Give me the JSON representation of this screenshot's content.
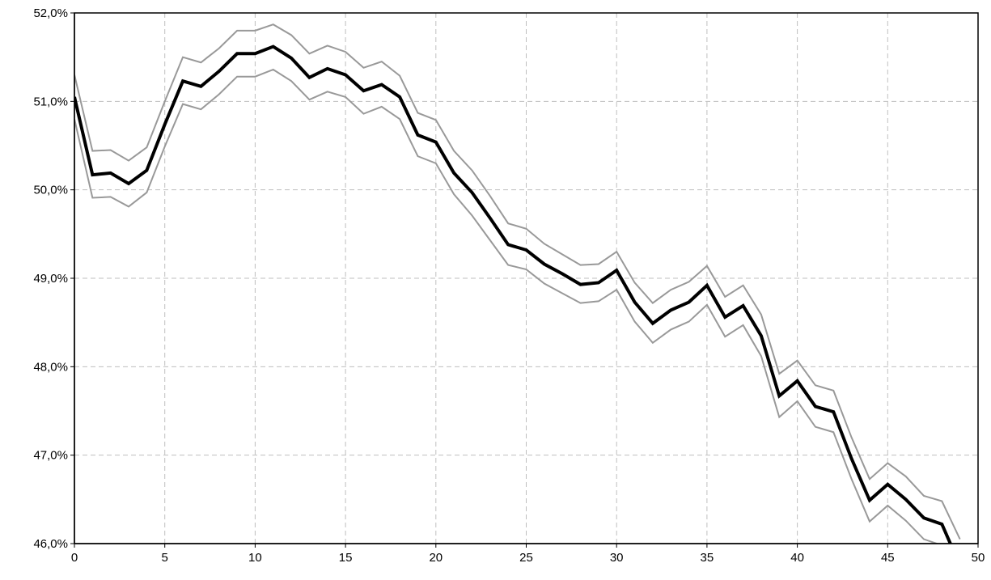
{
  "chart_data": {
    "type": "line",
    "title": "",
    "xlabel": "",
    "ylabel": "",
    "xlim": [
      0,
      50
    ],
    "ylim": [
      46.0,
      52.0
    ],
    "x_ticks": [
      0,
      5,
      10,
      15,
      20,
      25,
      30,
      35,
      40,
      45,
      50
    ],
    "x_tick_labels": [
      "0",
      "5",
      "10",
      "15",
      "20",
      "25",
      "30",
      "35",
      "40",
      "45",
      "50"
    ],
    "y_ticks": [
      46,
      47,
      48,
      49,
      50,
      51,
      52
    ],
    "y_tick_labels": [
      "46,0%",
      "47,0%",
      "48,0%",
      "49,0%",
      "50,0%",
      "51,0%",
      "52,0%"
    ],
    "grid": true,
    "legend": "none",
    "x": [
      0,
      1,
      2,
      3,
      4,
      5,
      6,
      7,
      8,
      9,
      10,
      11,
      12,
      13,
      14,
      15,
      16,
      17,
      18,
      19,
      20,
      21,
      22,
      23,
      24,
      25,
      26,
      27,
      28,
      29,
      30,
      31,
      32,
      33,
      34,
      35,
      36,
      37,
      38,
      39,
      40,
      41,
      42,
      43,
      44,
      45,
      46,
      47,
      48,
      49
    ],
    "series": [
      {
        "role": "upper",
        "color": "#999999",
        "values": [
          51.3,
          50.44,
          50.45,
          50.33,
          50.48,
          51.0,
          51.5,
          51.44,
          51.6,
          51.8,
          51.8,
          51.87,
          51.75,
          51.54,
          51.63,
          51.56,
          51.38,
          51.45,
          51.29,
          50.87,
          50.79,
          50.44,
          50.22,
          49.93,
          49.62,
          49.56,
          49.39,
          49.27,
          49.15,
          49.16,
          49.3,
          48.95,
          48.72,
          48.87,
          48.96,
          49.14,
          48.79,
          48.92,
          48.59,
          47.92,
          48.07,
          47.79,
          47.73,
          47.2,
          46.73,
          46.91,
          46.76,
          46.54,
          46.48,
          46.05
        ]
      },
      {
        "role": "main",
        "color": "#000000",
        "values": [
          51.05,
          50.17,
          50.19,
          50.07,
          50.22,
          50.74,
          51.23,
          51.17,
          51.34,
          51.54,
          51.54,
          51.62,
          51.49,
          51.27,
          51.37,
          51.3,
          51.12,
          51.19,
          51.05,
          50.62,
          50.54,
          50.19,
          49.97,
          49.68,
          49.38,
          49.32,
          49.16,
          49.05,
          48.93,
          48.95,
          49.09,
          48.73,
          48.49,
          48.64,
          48.73,
          48.92,
          48.56,
          48.69,
          48.35,
          47.67,
          47.84,
          47.55,
          47.49,
          46.96,
          46.49,
          46.67,
          46.5,
          46.29,
          46.22,
          45.75
        ]
      },
      {
        "role": "lower",
        "color": "#999999",
        "values": [
          50.8,
          49.91,
          49.92,
          49.81,
          49.97,
          50.49,
          50.97,
          50.91,
          51.08,
          51.28,
          51.28,
          51.36,
          51.23,
          51.02,
          51.11,
          51.05,
          50.86,
          50.94,
          50.8,
          50.38,
          50.3,
          49.95,
          49.71,
          49.43,
          49.15,
          49.1,
          48.94,
          48.83,
          48.72,
          48.74,
          48.87,
          48.51,
          48.27,
          48.42,
          48.51,
          48.7,
          48.34,
          48.47,
          48.12,
          47.43,
          47.61,
          47.32,
          47.26,
          46.73,
          46.25,
          46.43,
          46.26,
          46.05,
          45.98,
          45.5
        ]
      }
    ]
  }
}
